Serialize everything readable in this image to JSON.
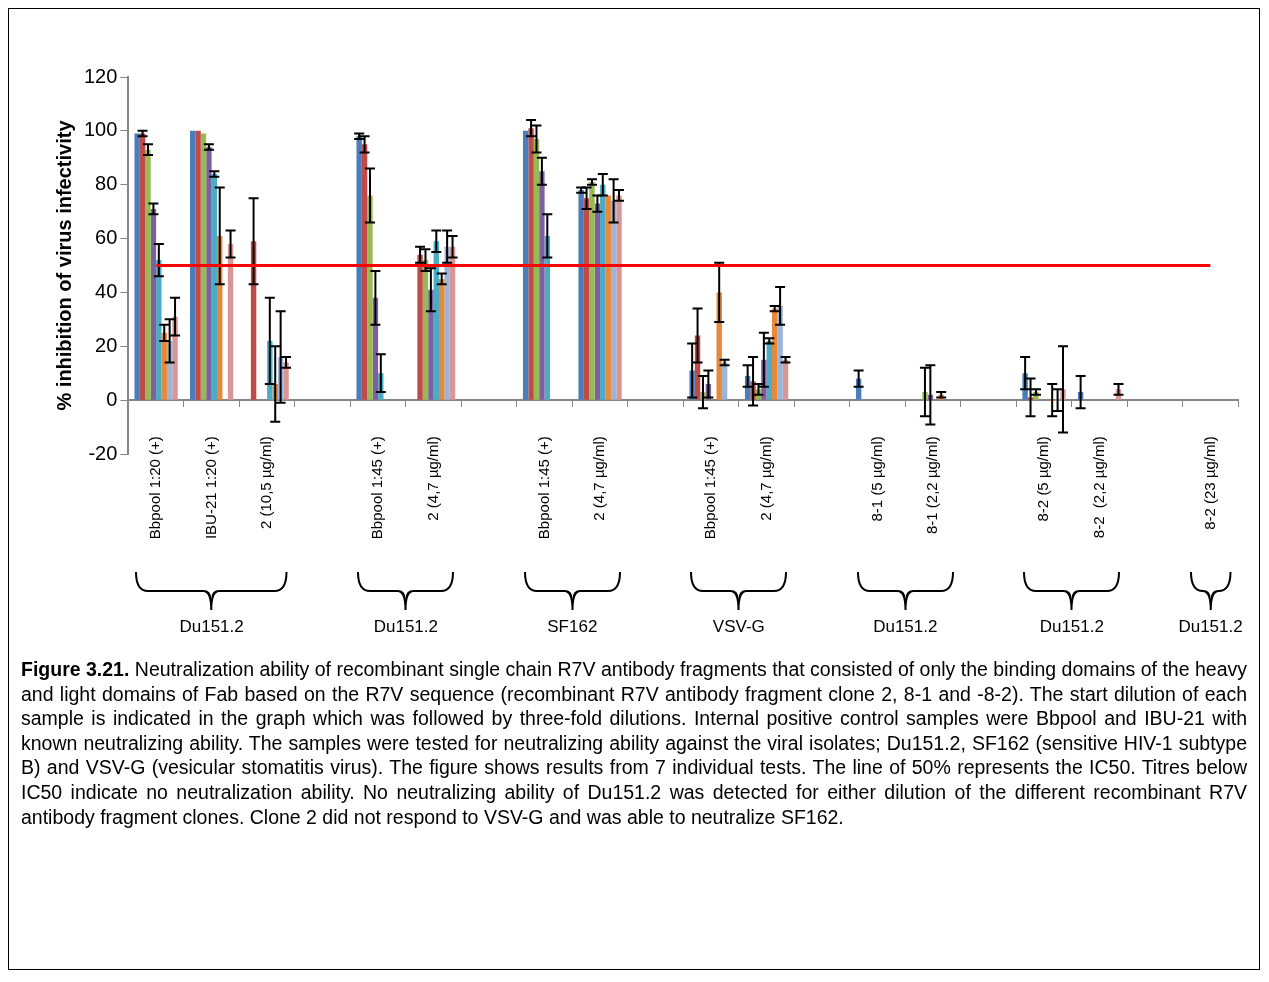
{
  "chart_data": {
    "type": "bar",
    "ylabel": "% inhibition of virus infectivity",
    "categories": [
      "Bbpool 1:20 (+)",
      "IBU-21 1:20 (+)",
      "2 (10,5 µg/ml)",
      null,
      "Bbpool 1:45 (+)",
      "2 (4,7 µg/ml)",
      null,
      "Bbpool 1:45 (+)",
      "2 (4,7 µg/ml)",
      null,
      "Bbpool 1:45 (+)",
      "2 (4,7 µg/ml)",
      null,
      "8-1 (5 µg/ml)",
      "8-1 (2,2 µg/ml)",
      null,
      "8-2 (5 µg/ml)",
      "8-2  (2,2 µg/ml)",
      null,
      "8-2 (23 µg/ml)"
    ],
    "series": [
      {
        "color": "#4a7ebb",
        "values": [
          99,
          100,
          null,
          null,
          98,
          null,
          null,
          100,
          78,
          null,
          11,
          9,
          null,
          8,
          null,
          null,
          10,
          3,
          null,
          null
        ],
        "errors": [
          null,
          null,
          null,
          null,
          1,
          null,
          null,
          null,
          1,
          null,
          10,
          4,
          null,
          3,
          null,
          null,
          6,
          6,
          null,
          null
        ]
      },
      {
        "color": "#be4b48",
        "values": [
          99,
          100,
          59,
          null,
          95,
          54,
          null,
          101,
          75,
          null,
          24,
          7,
          null,
          null,
          null,
          null,
          1,
          null,
          null,
          null
        ],
        "errors": [
          1,
          null,
          16,
          null,
          3,
          3,
          null,
          3,
          4,
          null,
          10,
          9,
          null,
          null,
          null,
          null,
          7,
          null,
          null,
          null
        ]
      },
      {
        "color": "#98b954",
        "values": [
          93,
          99,
          null,
          null,
          76,
          52,
          null,
          97,
          81,
          null,
          3,
          4,
          null,
          null,
          3,
          null,
          3,
          null,
          null,
          null
        ],
        "errors": [
          2,
          null,
          null,
          null,
          10,
          4,
          null,
          5,
          1,
          null,
          6,
          2,
          null,
          null,
          9,
          null,
          1,
          null,
          null,
          null
        ]
      },
      {
        "color": "#7d60a0",
        "values": [
          71,
          94,
          null,
          null,
          38,
          41,
          null,
          85,
          73,
          null,
          6,
          15,
          null,
          null,
          2,
          null,
          null,
          null,
          null,
          null
        ],
        "errors": [
          2,
          1,
          null,
          null,
          10,
          8,
          null,
          5,
          3,
          null,
          5,
          10,
          null,
          null,
          11,
          null,
          null,
          null,
          null,
          null
        ]
      },
      {
        "color": "#4bacc6",
        "values": [
          52,
          84,
          22,
          null,
          10,
          59,
          null,
          61,
          80,
          null,
          null,
          22,
          null,
          null,
          null,
          null,
          null,
          null,
          null,
          null
        ],
        "errors": [
          6,
          1,
          16,
          null,
          7,
          4,
          null,
          8,
          4,
          null,
          null,
          1,
          null,
          null,
          null,
          null,
          null,
          null,
          null,
          null
        ]
      },
      {
        "color": "#e8893a",
        "values": [
          25,
          61,
          6,
          null,
          null,
          45,
          null,
          null,
          76,
          null,
          40,
          34,
          null,
          null,
          2,
          null,
          0,
          null,
          null,
          null
        ],
        "errors": [
          3,
          18,
          14,
          null,
          null,
          2,
          null,
          null,
          null,
          null,
          11,
          1,
          null,
          null,
          1,
          null,
          6,
          null,
          null,
          null
        ]
      },
      {
        "color": "#9bb5d9",
        "values": [
          22,
          null,
          16,
          null,
          null,
          57,
          null,
          null,
          74,
          null,
          14,
          35,
          null,
          null,
          null,
          null,
          0,
          null,
          null,
          null
        ],
        "errors": [
          8,
          null,
          17,
          null,
          null,
          6,
          null,
          null,
          8,
          null,
          1,
          7,
          null,
          null,
          null,
          null,
          4,
          null,
          null,
          null
        ]
      },
      {
        "color": "#d99694",
        "values": [
          31,
          58,
          14,
          null,
          null,
          57,
          null,
          null,
          76,
          null,
          null,
          15,
          null,
          null,
          null,
          null,
          4,
          4,
          null,
          null
        ],
        "errors": [
          7,
          5,
          2,
          null,
          null,
          4,
          null,
          null,
          2,
          null,
          null,
          1,
          null,
          null,
          null,
          null,
          16,
          2,
          null,
          null
        ]
      }
    ],
    "ylim": [
      -20,
      120
    ],
    "yticks": [
      -20,
      0,
      20,
      40,
      60,
      80,
      100,
      120
    ],
    "grid": false,
    "legend": false,
    "ref_lines": [
      {
        "axis": "y",
        "value": 50,
        "color": "#ff0000"
      }
    ],
    "annotations": [
      "Du151.2",
      "Du151.2",
      "SF162",
      "VSV-G",
      "Du151.2",
      "Du151.2",
      "Du151.2",
      "Figure 3.21.",
      "Neutralization ability of recombinant single chain R7V antibody fragments that consisted of only the binding domains of the heavy and light domains of Fab based on the R7V sequence (recombinant R7V antibody fragment clone 2, 8-1 and -8-2). The start dilution of each sample is indicated in the graph which was followed by three-fold dilutions. Internal positive control samples were Bbpool and IBU-21 with known neutralizing ability. The samples were tested for neutralizing ability against the viral isolates; Du151.2, SF162 (sensitive HIV-1 subtype B) and VSV-G (vesicular stomatitis virus). The figure shows results from 7 individual tests. The line of 50% represents the IC50. Titres below IC50 indicate no neutralization ability. No neutralizing ability of Du151.2 was detected for either dilution of the different recombinant R7V antibody fragment clones. Clone 2 did not respond to VSV-G and was able to neutralize SF162."
    ]
  }
}
